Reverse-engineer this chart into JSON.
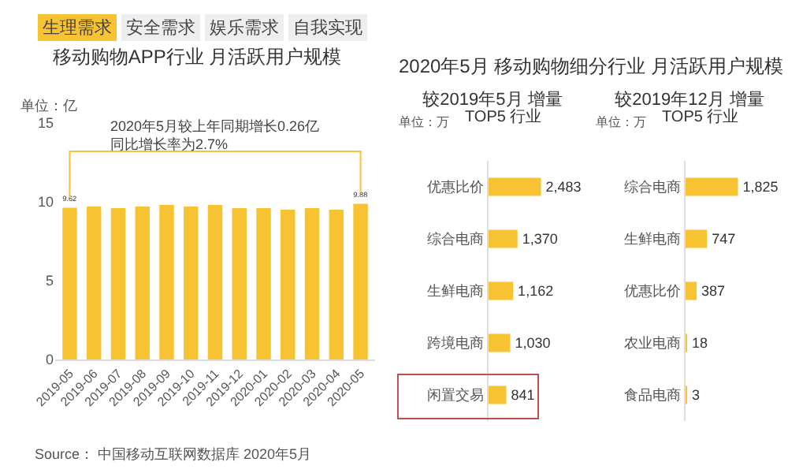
{
  "chart_data": [
    {
      "type": "bar",
      "title": "移动购物APP行业 月活跃用户规模",
      "ylabel": "单位：亿",
      "annotations": [
        "生理需求",
        "安全需求",
        "娱乐需求",
        "自我实现",
        "2020年5月较上年同期增长0.26亿同比增长率为2.7%",
        "Source： 中国移动互联网数据库 2020年5月"
      ],
      "categories": [
        "2019-05",
        "2019-06",
        "2019-07",
        "2019-08",
        "2019-09",
        "2019-10",
        "2019-11",
        "2019-12",
        "2020-01",
        "2020-02",
        "2020-03",
        "2020-04",
        "2020-05"
      ],
      "values": [
        9.62,
        9.7,
        9.6,
        9.7,
        9.8,
        9.7,
        9.8,
        9.6,
        9.6,
        9.5,
        9.6,
        9.5,
        9.88
      ],
      "value_labels": [
        "9.62",
        null,
        null,
        null,
        null,
        null,
        null,
        null,
        null,
        null,
        null,
        null,
        "9.88"
      ],
      "color": "#f8c332",
      "ylim": [
        0,
        15
      ],
      "yticks": [
        0,
        5,
        10,
        15
      ],
      "grid": false
    },
    {
      "type": "bar",
      "orientation": "horizontal",
      "title": "较2019年5月 增量",
      "subtitle": "TOP5 行业",
      "annotations": [
        "2020年5月 移动购物细分行业 月活跃用户规模",
        "单位：万"
      ],
      "categories": [
        "优惠比价",
        "综合电商",
        "生鲜电商",
        "跨境电商",
        "闲置交易"
      ],
      "values": [
        2483,
        1370,
        1162,
        1030,
        841
      ],
      "value_labels": [
        "2,483",
        "1,370",
        "1,162",
        "1,030",
        "841"
      ],
      "color": "#f8c332",
      "tick_labels": "y",
      "grid": false
    },
    {
      "type": "bar",
      "orientation": "horizontal",
      "title": "较2019年12月 增量",
      "subtitle": "TOP5 行业",
      "annotations": [
        "单位：万"
      ],
      "categories": [
        "综合电商",
        "生鲜电商",
        "优惠比价",
        "农业电商",
        "食品电商"
      ],
      "values": [
        1825,
        747,
        387,
        18,
        3
      ],
      "value_labels": [
        "1,825",
        "747",
        "387",
        "18",
        "3"
      ],
      "color": "#f8c332",
      "tick_labels": "y",
      "grid": false
    }
  ]
}
